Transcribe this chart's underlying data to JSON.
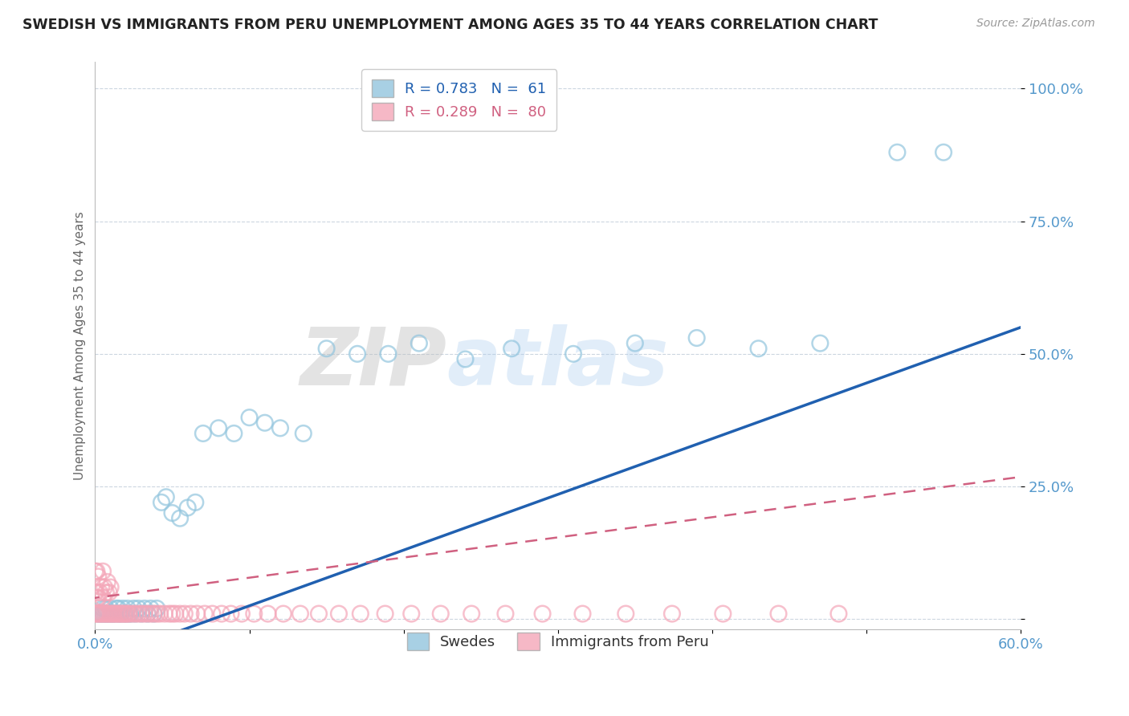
{
  "title": "SWEDISH VS IMMIGRANTS FROM PERU UNEMPLOYMENT AMONG AGES 35 TO 44 YEARS CORRELATION CHART",
  "source": "Source: ZipAtlas.com",
  "xlim": [
    0.0,
    0.6
  ],
  "ylim": [
    -0.02,
    1.05
  ],
  "legend_blue": "R = 0.783   N =  61",
  "legend_pink": "R = 0.289   N =  80",
  "legend_label_blue": "Swedes",
  "legend_label_pink": "Immigrants from Peru",
  "blue_color": "#92c5de",
  "pink_color": "#f4a6b8",
  "blue_line_color": "#2060b0",
  "pink_line_color": "#d06080",
  "watermark1": "ZIP",
  "watermark2": "atlas",
  "ylabel": "Unemployment Among Ages 35 to 44 years",
  "blue_intercept": -0.08,
  "blue_slope": 1.05,
  "pink_intercept": 0.04,
  "pink_slope": 0.38,
  "swedes_x": [
    0.002,
    0.003,
    0.004,
    0.005,
    0.005,
    0.006,
    0.007,
    0.007,
    0.008,
    0.009,
    0.01,
    0.01,
    0.011,
    0.012,
    0.013,
    0.014,
    0.015,
    0.015,
    0.016,
    0.017,
    0.018,
    0.019,
    0.02,
    0.021,
    0.022,
    0.023,
    0.025,
    0.026,
    0.028,
    0.03,
    0.032,
    0.034,
    0.036,
    0.038,
    0.04,
    0.043,
    0.046,
    0.05,
    0.055,
    0.06,
    0.065,
    0.07,
    0.08,
    0.09,
    0.1,
    0.11,
    0.12,
    0.135,
    0.15,
    0.17,
    0.19,
    0.21,
    0.24,
    0.27,
    0.31,
    0.35,
    0.39,
    0.43,
    0.47,
    0.52,
    0.55
  ],
  "swedes_y": [
    0.01,
    0.01,
    0.01,
    0.01,
    0.02,
    0.01,
    0.01,
    0.02,
    0.01,
    0.01,
    0.01,
    0.02,
    0.01,
    0.01,
    0.01,
    0.02,
    0.01,
    0.02,
    0.01,
    0.01,
    0.02,
    0.01,
    0.01,
    0.02,
    0.01,
    0.01,
    0.02,
    0.01,
    0.02,
    0.01,
    0.02,
    0.01,
    0.02,
    0.01,
    0.02,
    0.22,
    0.23,
    0.2,
    0.19,
    0.21,
    0.22,
    0.35,
    0.36,
    0.35,
    0.38,
    0.37,
    0.36,
    0.35,
    0.51,
    0.5,
    0.5,
    0.52,
    0.49,
    0.51,
    0.5,
    0.52,
    0.53,
    0.51,
    0.52,
    0.88,
    0.88
  ],
  "peru_x": [
    0.0,
    0.0,
    0.0,
    0.001,
    0.001,
    0.001,
    0.002,
    0.002,
    0.002,
    0.003,
    0.003,
    0.004,
    0.004,
    0.005,
    0.005,
    0.005,
    0.006,
    0.006,
    0.007,
    0.007,
    0.008,
    0.008,
    0.009,
    0.009,
    0.01,
    0.01,
    0.011,
    0.012,
    0.013,
    0.014,
    0.015,
    0.016,
    0.017,
    0.018,
    0.019,
    0.02,
    0.021,
    0.022,
    0.024,
    0.026,
    0.028,
    0.03,
    0.032,
    0.034,
    0.036,
    0.038,
    0.04,
    0.042,
    0.045,
    0.048,
    0.05,
    0.052,
    0.055,
    0.058,
    0.062,
    0.066,
    0.071,
    0.076,
    0.082,
    0.088,
    0.095,
    0.103,
    0.112,
    0.122,
    0.133,
    0.145,
    0.158,
    0.172,
    0.188,
    0.205,
    0.224,
    0.244,
    0.266,
    0.29,
    0.316,
    0.344,
    0.374,
    0.407,
    0.443,
    0.482
  ],
  "peru_y": [
    0.01,
    0.05,
    0.09,
    0.01,
    0.04,
    0.09,
    0.01,
    0.04,
    0.08,
    0.01,
    0.05,
    0.01,
    0.06,
    0.01,
    0.04,
    0.09,
    0.01,
    0.06,
    0.01,
    0.05,
    0.01,
    0.07,
    0.01,
    0.05,
    0.01,
    0.06,
    0.01,
    0.01,
    0.01,
    0.01,
    0.01,
    0.01,
    0.01,
    0.01,
    0.01,
    0.01,
    0.01,
    0.01,
    0.01,
    0.01,
    0.01,
    0.01,
    0.01,
    0.01,
    0.01,
    0.01,
    0.01,
    0.01,
    0.01,
    0.01,
    0.01,
    0.01,
    0.01,
    0.01,
    0.01,
    0.01,
    0.01,
    0.01,
    0.01,
    0.01,
    0.01,
    0.01,
    0.01,
    0.01,
    0.01,
    0.01,
    0.01,
    0.01,
    0.01,
    0.01,
    0.01,
    0.01,
    0.01,
    0.01,
    0.01,
    0.01,
    0.01,
    0.01,
    0.01,
    0.01
  ]
}
